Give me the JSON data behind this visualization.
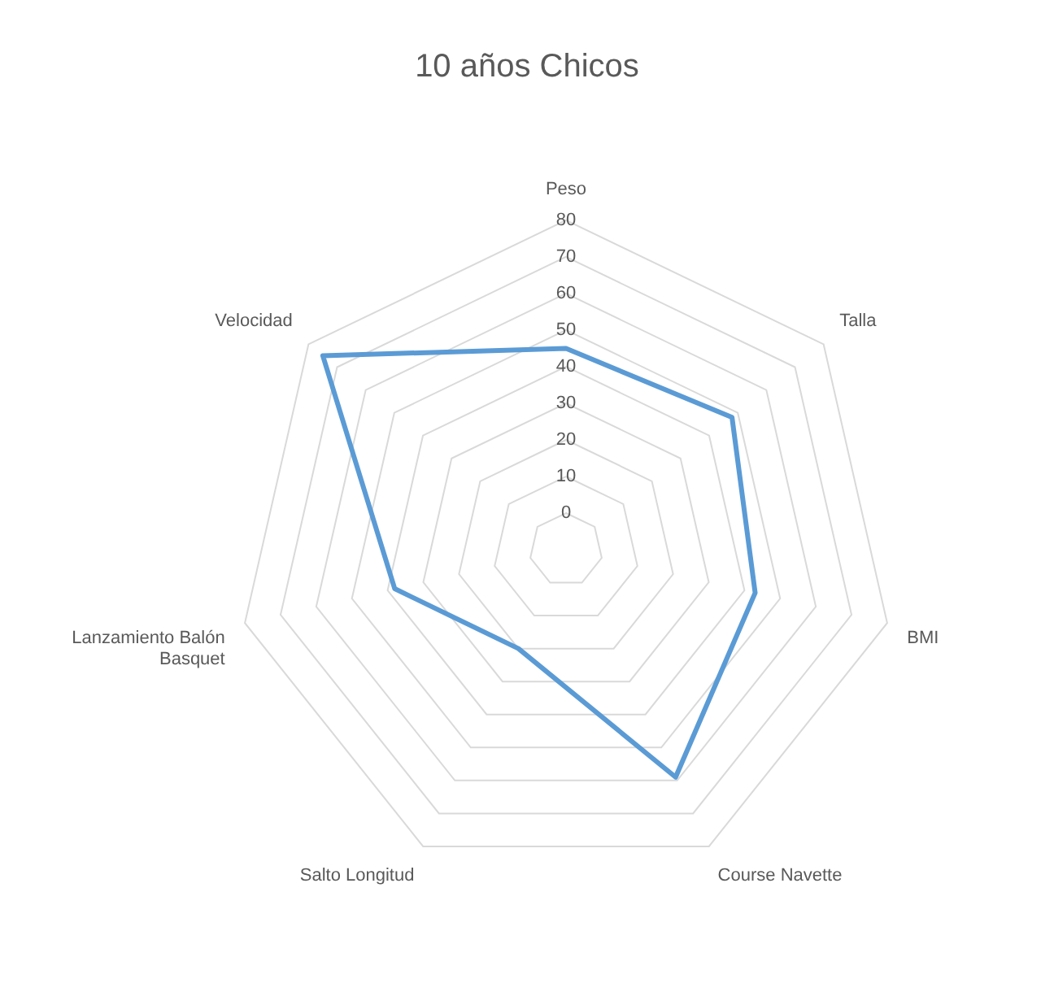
{
  "chart_data": {
    "type": "radar",
    "title": "10 años Chicos",
    "categories": [
      "Peso",
      "Talla",
      "BMI",
      "Course Navette",
      "Salto Longitud",
      "Lanzamiento Balón Basquet",
      "Velocidad"
    ],
    "series": [
      {
        "color": "#5b9bd5",
        "values": [
          45,
          48,
          43,
          59,
          20,
          38,
          75
        ]
      }
    ],
    "ylim": [
      -10,
      80
    ],
    "yticks": [
      0,
      10,
      20,
      30,
      40,
      50,
      60,
      70,
      80
    ],
    "grid": true,
    "legend": false,
    "marker": "none",
    "line_style": "solid"
  }
}
